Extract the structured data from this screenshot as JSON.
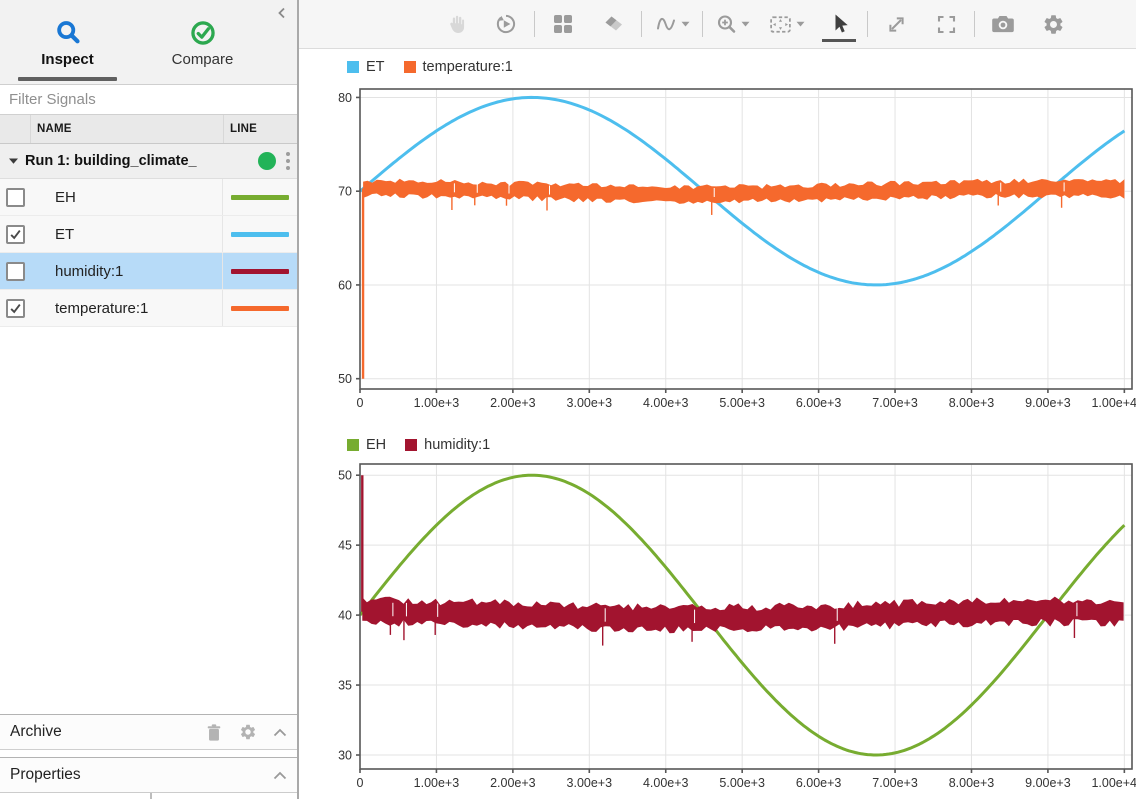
{
  "sidebar": {
    "tabs": [
      {
        "label": "Inspect",
        "active": true
      },
      {
        "label": "Compare",
        "active": false
      }
    ],
    "filter": {
      "placeholder": "Filter Signals",
      "value": ""
    },
    "table": {
      "columns": [
        "NAME",
        "LINE"
      ],
      "run": {
        "label": "Run 1: building_climate_",
        "expanded": true,
        "status_color": "#22B358"
      },
      "signals": [
        {
          "name": "EH",
          "checked": false,
          "selected": false,
          "line_color": "#77AC30"
        },
        {
          "name": "ET",
          "checked": true,
          "selected": false,
          "line_color": "#4DBEEE"
        },
        {
          "name": "humidity:1",
          "checked": false,
          "selected": true,
          "line_color": "#A2142F"
        },
        {
          "name": "temperature:1",
          "checked": true,
          "selected": false,
          "line_color": "#F5692D"
        }
      ]
    },
    "archive": {
      "label": "Archive"
    },
    "properties": {
      "label": "Properties"
    },
    "selection_color": "#B7DBF8"
  },
  "toolbar": {
    "icons": [
      {
        "name": "pan-hand",
        "enabled": false,
        "active": false,
        "dropdown": false
      },
      {
        "name": "replay",
        "enabled": true,
        "active": false,
        "dropdown": false
      },
      {
        "name": "layout-grid",
        "enabled": true,
        "active": false,
        "dropdown": false
      },
      {
        "name": "eraser",
        "enabled": true,
        "active": false,
        "dropdown": false
      },
      {
        "name": "signal-generator",
        "enabled": true,
        "active": false,
        "dropdown": true
      },
      {
        "name": "zoom-in",
        "enabled": true,
        "active": false,
        "dropdown": true
      },
      {
        "name": "fit-to-view",
        "enabled": true,
        "active": false,
        "dropdown": true
      },
      {
        "name": "pointer",
        "enabled": true,
        "active": true,
        "dropdown": false
      },
      {
        "name": "expand",
        "enabled": true,
        "active": false,
        "dropdown": false
      },
      {
        "name": "fullscreen",
        "enabled": true,
        "active": false,
        "dropdown": false
      },
      {
        "name": "snapshot",
        "enabled": true,
        "active": false,
        "dropdown": false
      },
      {
        "name": "settings",
        "enabled": true,
        "active": false,
        "dropdown": false
      }
    ]
  },
  "chart_data": [
    {
      "type": "line",
      "title": "",
      "legend": {
        "position": "top-left",
        "entries": [
          "ET",
          "temperature:1"
        ]
      },
      "xlim": [
        0,
        10100
      ],
      "ylim": [
        48.9,
        80.9
      ],
      "grid": true,
      "xticks": {
        "values": [
          0,
          1000,
          2000,
          3000,
          4000,
          5000,
          6000,
          7000,
          8000,
          9000,
          10000
        ],
        "labels": [
          "0",
          "1.00e+3",
          "2.00e+3",
          "3.00e+3",
          "4.00e+3",
          "5.00e+3",
          "6.00e+3",
          "7.00e+3",
          "8.00e+3",
          "9.00e+3",
          "1.00e+4"
        ]
      },
      "yticks": {
        "values": [
          50,
          60,
          70,
          80
        ],
        "labels": [
          "50",
          "60",
          "70",
          "80"
        ]
      },
      "series": [
        {
          "name": "ET",
          "color": "#4DBEEE",
          "model": "sine",
          "mean": 70,
          "amplitude": 10,
          "period": 9000,
          "x_range": [
            0,
            10000
          ],
          "formula": "70 + 10*sin(2*pi*x/9000)",
          "peak": [
            2250,
            80
          ],
          "trough": [
            6750,
            60
          ],
          "end_value": 76.4
        },
        {
          "name": "temperature:1",
          "color": "#F5692D",
          "model": "noisy-flat",
          "mean": 70,
          "mean_wobble": {
            "amplitude": 0.3,
            "period": 9000
          },
          "noise_halfwidth": 0.8,
          "initial_value": 50,
          "initial_x": 40,
          "x_range": [
            0,
            10000
          ]
        }
      ]
    },
    {
      "type": "line",
      "title": "",
      "legend": {
        "position": "top-left",
        "entries": [
          "EH",
          "humidity:1"
        ]
      },
      "xlim": [
        0,
        10100
      ],
      "ylim": [
        29.0,
        50.8
      ],
      "grid": true,
      "xticks": {
        "values": [
          0,
          1000,
          2000,
          3000,
          4000,
          5000,
          6000,
          7000,
          8000,
          9000,
          10000
        ],
        "labels": [
          "0",
          "1.00e+3",
          "2.00e+3",
          "3.00e+3",
          "4.00e+3",
          "5.00e+3",
          "6.00e+3",
          "7.00e+3",
          "8.00e+3",
          "9.00e+3",
          "1.00e+4"
        ]
      },
      "yticks": {
        "values": [
          30,
          35,
          40,
          45,
          50
        ],
        "labels": [
          "30",
          "35",
          "40",
          "45",
          "50"
        ]
      },
      "series": [
        {
          "name": "EH",
          "color": "#77AC30",
          "model": "sine",
          "mean": 40,
          "amplitude": 10,
          "period": 9000,
          "x_range": [
            0,
            10000
          ],
          "formula": "40 + 10*sin(2*pi*x/9000)",
          "peak": [
            2250,
            50
          ],
          "trough": [
            6750,
            30
          ],
          "end_value": 46.4
        },
        {
          "name": "humidity:1",
          "color": "#A2142F",
          "model": "noisy-flat",
          "mean": 40,
          "mean_wobble": {
            "amplitude": 0.25,
            "period": 9000
          },
          "noise_halfwidth": 0.8,
          "initial_value": 50,
          "initial_x": 30,
          "x_range": [
            0,
            10000
          ]
        }
      ]
    }
  ]
}
